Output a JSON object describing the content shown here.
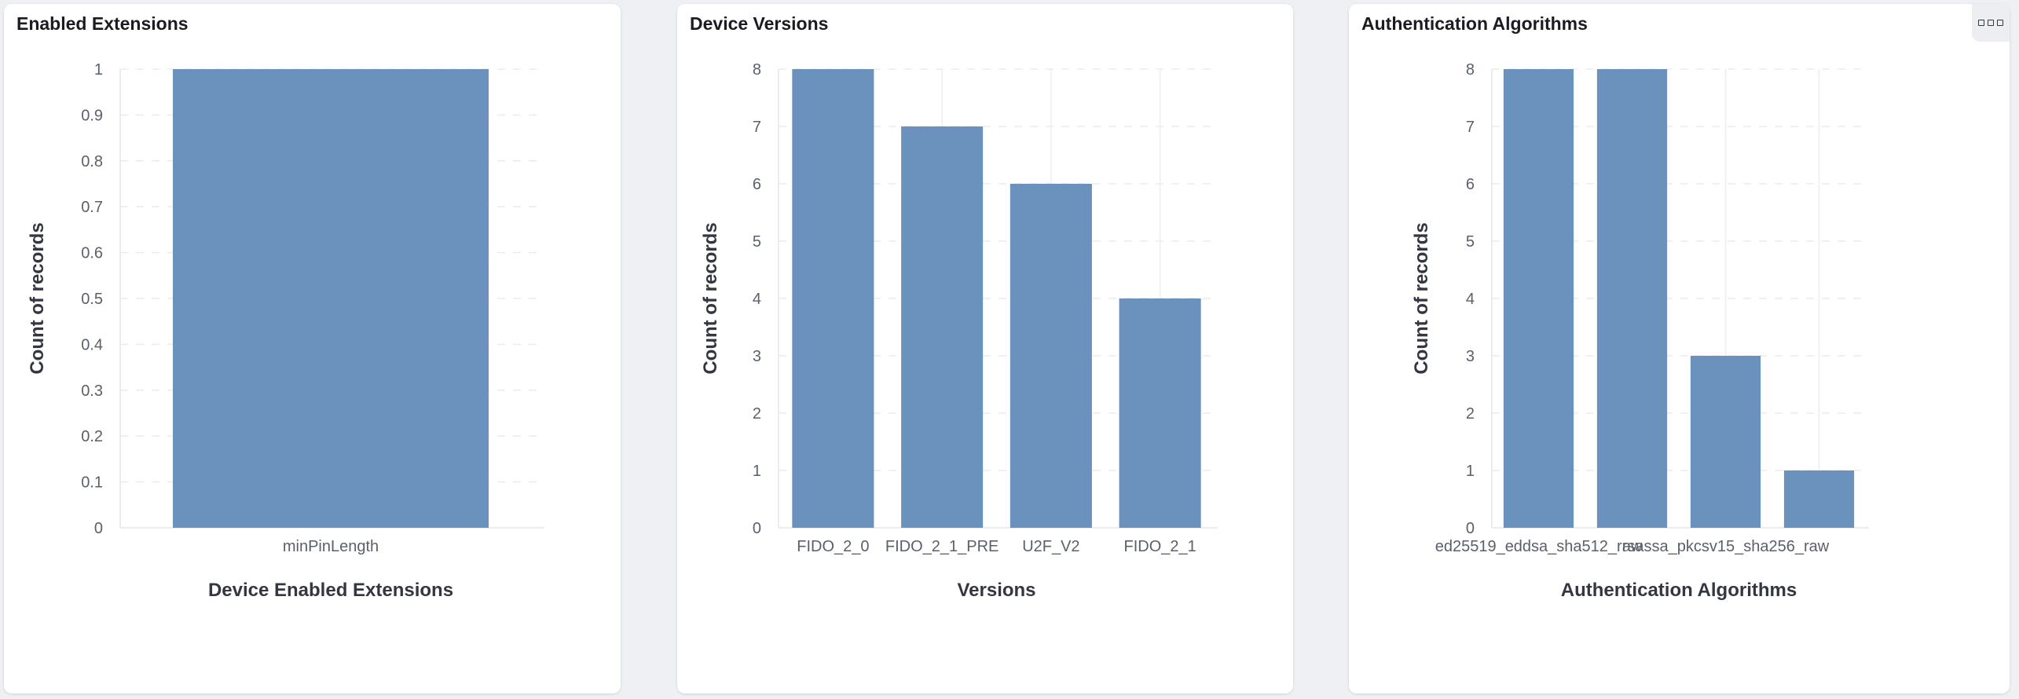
{
  "panels": [
    {
      "title": "Enabled Extensions"
    },
    {
      "title": "Device Versions"
    },
    {
      "title": "Authentication Algorithms",
      "menu_icon": "ellipsis-boxes-icon"
    }
  ],
  "chart_data": [
    {
      "type": "bar",
      "title": "Enabled Extensions",
      "categories": [
        "minPinLength"
      ],
      "values": [
        1
      ],
      "xlabel": "Device Enabled Extensions",
      "ylabel": "Count of records",
      "ylim": [
        0,
        1
      ],
      "yticks": [
        "0",
        "0.1",
        "0.2",
        "0.3",
        "0.4",
        "0.5",
        "0.6",
        "0.7",
        "0.8",
        "0.9",
        "1"
      ],
      "grid": true,
      "bar_color": "#6b92bc"
    },
    {
      "type": "bar",
      "title": "Device Versions",
      "categories": [
        "FIDO_2_0",
        "FIDO_2_1_PRE",
        "U2F_V2",
        "FIDO_2_1"
      ],
      "values": [
        8,
        7,
        6,
        4
      ],
      "xlabel": "Versions",
      "ylabel": "Count of records",
      "ylim": [
        0,
        8
      ],
      "yticks": [
        "0",
        "1",
        "2",
        "3",
        "4",
        "5",
        "6",
        "7",
        "8"
      ],
      "grid": true,
      "bar_color": "#6b92bc"
    },
    {
      "type": "bar",
      "title": "Authentication Algorithms",
      "categories": [
        "ed25519_eddsa_sha512_raw",
        "",
        "rsassa_pkcsv15_sha256_raw",
        ""
      ],
      "values": [
        8,
        8,
        3,
        1
      ],
      "xlabel": "Authentication Algorithms",
      "ylabel": "Count of records",
      "ylim": [
        0,
        8
      ],
      "yticks": [
        "0",
        "1",
        "2",
        "3",
        "4",
        "5",
        "6",
        "7",
        "8"
      ],
      "grid": true,
      "bar_color": "#6b92bc"
    }
  ]
}
